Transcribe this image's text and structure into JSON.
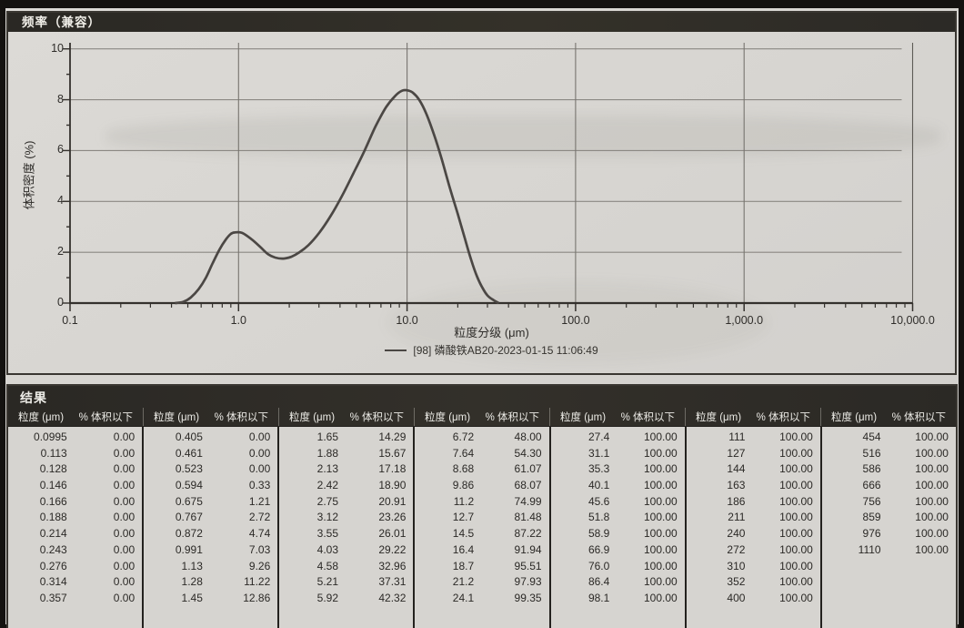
{
  "chart_panel": {
    "title": "频率（兼容）",
    "ylabel": "体积密度 (%)",
    "xlabel": "粒度分级 (μm)",
    "legend_label": "[98] 磷酸铁AB20-2023-01-15 11:06:49"
  },
  "results_panel": {
    "title": "结果",
    "size_header": "粒度 (μm)",
    "pct_header": "% 体积以下"
  },
  "colors": {
    "paper": "#d7d5d1",
    "header_bar": "#2c2a26",
    "curve": "#4b4744",
    "grid": "#8b8883",
    "axis": "#34312d",
    "text": "#2f2d2a"
  },
  "chart_data": [
    {
      "type": "line",
      "title": "频率（兼容）",
      "xlabel": "粒度分级 (μm)",
      "ylabel": "体积密度 (%)",
      "x_scale": "log",
      "xlim": [
        0.1,
        10000
      ],
      "ylim": [
        0,
        10
      ],
      "grid": true,
      "xticks_labels": [
        "0.1",
        "1.0",
        "10.0",
        "100.0",
        "1,000.0",
        "10,000.0"
      ],
      "yticks_values": [
        0,
        2,
        4,
        6,
        8,
        10
      ],
      "legend_position": "bottom-center",
      "series": [
        {
          "name": "[98] 磷酸铁AB20-2023-01-15 11:06:49",
          "points": [
            [
              0.42,
              0
            ],
            [
              0.47,
              0.05
            ],
            [
              0.52,
              0.22
            ],
            [
              0.58,
              0.55
            ],
            [
              0.64,
              1.0
            ],
            [
              0.7,
              1.55
            ],
            [
              0.77,
              2.1
            ],
            [
              0.84,
              2.5
            ],
            [
              0.9,
              2.72
            ],
            [
              0.95,
              2.78
            ],
            [
              1.05,
              2.76
            ],
            [
              1.2,
              2.5
            ],
            [
              1.35,
              2.2
            ],
            [
              1.5,
              1.92
            ],
            [
              1.65,
              1.79
            ],
            [
              1.85,
              1.75
            ],
            [
              2.05,
              1.82
            ],
            [
              2.3,
              2.0
            ],
            [
              2.6,
              2.28
            ],
            [
              3.0,
              2.75
            ],
            [
              3.5,
              3.4
            ],
            [
              4.1,
              4.2
            ],
            [
              4.8,
              5.1
            ],
            [
              5.6,
              6.0
            ],
            [
              6.5,
              6.95
            ],
            [
              7.5,
              7.7
            ],
            [
              8.5,
              8.15
            ],
            [
              9.3,
              8.35
            ],
            [
              10.0,
              8.37
            ],
            [
              10.8,
              8.28
            ],
            [
              11.8,
              8.0
            ],
            [
              13.0,
              7.45
            ],
            [
              14.5,
              6.6
            ],
            [
              16.0,
              5.7
            ],
            [
              18.0,
              4.5
            ],
            [
              20.0,
              3.5
            ],
            [
              22.0,
              2.55
            ],
            [
              24.0,
              1.7
            ],
            [
              26.0,
              1.05
            ],
            [
              28.0,
              0.6
            ],
            [
              30.0,
              0.3
            ],
            [
              32.5,
              0.12
            ],
            [
              35.0,
              0
            ]
          ]
        }
      ]
    },
    {
      "type": "table",
      "title": "结果",
      "column_headers": [
        "粒度 (μm)",
        "% 体积以下"
      ],
      "groups": [
        [
          [
            "0.0995",
            "0.00"
          ],
          [
            "0.113",
            "0.00"
          ],
          [
            "0.128",
            "0.00"
          ],
          [
            "0.146",
            "0.00"
          ],
          [
            "0.166",
            "0.00"
          ],
          [
            "0.188",
            "0.00"
          ],
          [
            "0.214",
            "0.00"
          ],
          [
            "0.243",
            "0.00"
          ],
          [
            "0.276",
            "0.00"
          ],
          [
            "0.314",
            "0.00"
          ],
          [
            "0.357",
            "0.00"
          ]
        ],
        [
          [
            "0.405",
            "0.00"
          ],
          [
            "0.461",
            "0.00"
          ],
          [
            "0.523",
            "0.00"
          ],
          [
            "0.594",
            "0.33"
          ],
          [
            "0.675",
            "1.21"
          ],
          [
            "0.767",
            "2.72"
          ],
          [
            "0.872",
            "4.74"
          ],
          [
            "0.991",
            "7.03"
          ],
          [
            "1.13",
            "9.26"
          ],
          [
            "1.28",
            "11.22"
          ],
          [
            "1.45",
            "12.86"
          ]
        ],
        [
          [
            "1.65",
            "14.29"
          ],
          [
            "1.88",
            "15.67"
          ],
          [
            "2.13",
            "17.18"
          ],
          [
            "2.42",
            "18.90"
          ],
          [
            "2.75",
            "20.91"
          ],
          [
            "3.12",
            "23.26"
          ],
          [
            "3.55",
            "26.01"
          ],
          [
            "4.03",
            "29.22"
          ],
          [
            "4.58",
            "32.96"
          ],
          [
            "5.21",
            "37.31"
          ],
          [
            "5.92",
            "42.32"
          ]
        ],
        [
          [
            "6.72",
            "48.00"
          ],
          [
            "7.64",
            "54.30"
          ],
          [
            "8.68",
            "61.07"
          ],
          [
            "9.86",
            "68.07"
          ],
          [
            "11.2",
            "74.99"
          ],
          [
            "12.7",
            "81.48"
          ],
          [
            "14.5",
            "87.22"
          ],
          [
            "16.4",
            "91.94"
          ],
          [
            "18.7",
            "95.51"
          ],
          [
            "21.2",
            "97.93"
          ],
          [
            "24.1",
            "99.35"
          ]
        ],
        [
          [
            "27.4",
            "100.00"
          ],
          [
            "31.1",
            "100.00"
          ],
          [
            "35.3",
            "100.00"
          ],
          [
            "40.1",
            "100.00"
          ],
          [
            "45.6",
            "100.00"
          ],
          [
            "51.8",
            "100.00"
          ],
          [
            "58.9",
            "100.00"
          ],
          [
            "66.9",
            "100.00"
          ],
          [
            "76.0",
            "100.00"
          ],
          [
            "86.4",
            "100.00"
          ],
          [
            "98.1",
            "100.00"
          ]
        ],
        [
          [
            "111",
            "100.00"
          ],
          [
            "127",
            "100.00"
          ],
          [
            "144",
            "100.00"
          ],
          [
            "163",
            "100.00"
          ],
          [
            "186",
            "100.00"
          ],
          [
            "211",
            "100.00"
          ],
          [
            "240",
            "100.00"
          ],
          [
            "272",
            "100.00"
          ],
          [
            "310",
            "100.00"
          ],
          [
            "352",
            "100.00"
          ],
          [
            "400",
            "100.00"
          ]
        ],
        [
          [
            "454",
            "100.00"
          ],
          [
            "516",
            "100.00"
          ],
          [
            "586",
            "100.00"
          ],
          [
            "666",
            "100.00"
          ],
          [
            "756",
            "100.00"
          ],
          [
            "859",
            "100.00"
          ],
          [
            "976",
            "100.00"
          ],
          [
            "1110",
            "100.00"
          ]
        ]
      ]
    }
  ]
}
